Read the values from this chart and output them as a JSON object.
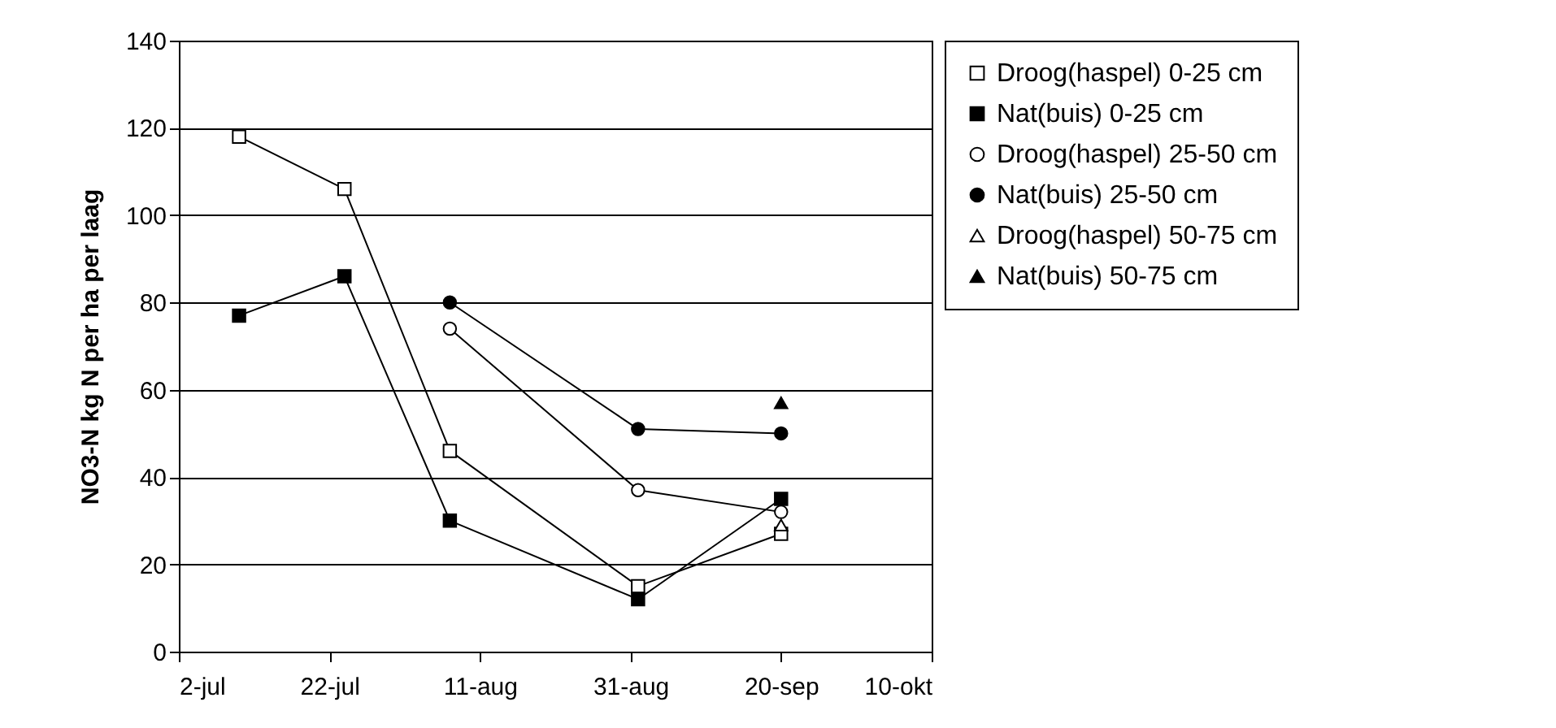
{
  "chart_data": {
    "type": "line",
    "ylabel": "NO3-N kg N per ha per laag",
    "xlim": [
      "--07-02",
      "--10-10"
    ],
    "xticks": [
      {
        "value": "--07-02",
        "label": "2-jul"
      },
      {
        "value": "--07-22",
        "label": "22-jul"
      },
      {
        "value": "--08-11",
        "label": "11-aug"
      },
      {
        "value": "--08-31",
        "label": "31-aug"
      },
      {
        "value": "--09-20",
        "label": "20-sep"
      },
      {
        "value": "--10-10",
        "label": "10-okt"
      }
    ],
    "ylim": [
      0,
      140
    ],
    "yticks": [
      0,
      20,
      40,
      60,
      80,
      100,
      120,
      140
    ],
    "grid": "y",
    "legend": "right",
    "series": [
      {
        "name": "Droog(haspel) 0-25 cm",
        "type": "line",
        "marker": "square",
        "color": "#ffffff",
        "x": [
          "--07-10",
          "--07-24",
          "--08-07",
          "--09-01",
          "--09-20"
        ],
        "values": [
          118,
          106,
          46,
          15,
          27
        ]
      },
      {
        "name": "Nat(buis) 0-25 cm",
        "type": "line",
        "marker": "square",
        "color": "#000000",
        "x": [
          "--07-10",
          "--07-24",
          "--08-07",
          "--09-01",
          "--09-20"
        ],
        "values": [
          77,
          86,
          30,
          12,
          35
        ]
      },
      {
        "name": "Droog(haspel) 25-50 cm",
        "type": "line",
        "marker": "circle",
        "color": "#ffffff",
        "x": [
          "--08-07",
          "--09-01",
          "--09-20"
        ],
        "values": [
          74,
          37,
          32
        ]
      },
      {
        "name": "Nat(buis) 25-50 cm",
        "type": "line",
        "marker": "circle",
        "color": "#000000",
        "x": [
          "--08-07",
          "--09-01",
          "--09-20"
        ],
        "values": [
          80,
          51,
          50
        ]
      },
      {
        "name": "Droog(haspel) 50-75 cm",
        "type": "scatter",
        "marker": "triangle",
        "color": "#ffffff",
        "x": [
          "--09-20"
        ],
        "values": [
          29
        ]
      },
      {
        "name": "Nat(buis) 50-75 cm",
        "type": "scatter",
        "marker": "triangle",
        "color": "#000000",
        "x": [
          "--09-20"
        ],
        "values": [
          57
        ]
      }
    ]
  }
}
